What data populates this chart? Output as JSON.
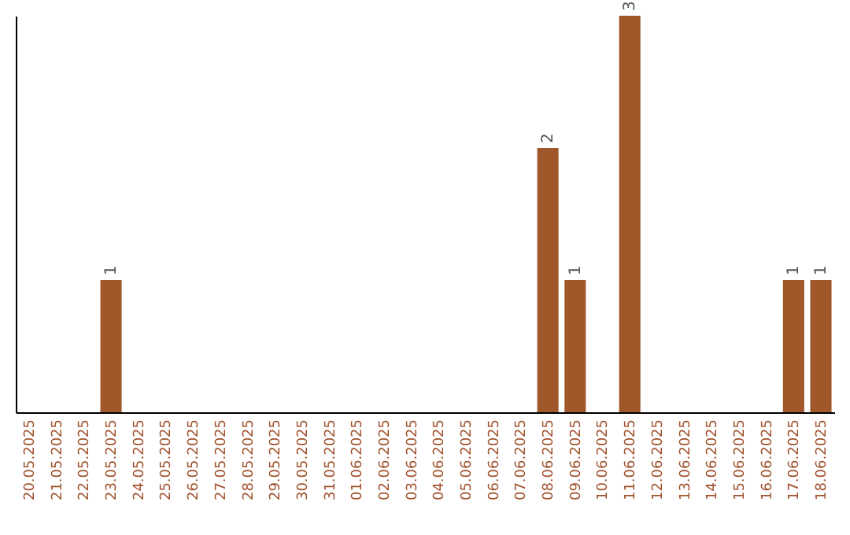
{
  "chart_data": {
    "type": "bar",
    "categories": [
      "20.05.2025",
      "21.05.2025",
      "22.05.2025",
      "23.05.2025",
      "24.05.2025",
      "25.05.2025",
      "26.05.2025",
      "27.05.2025",
      "28.05.2025",
      "29.05.2025",
      "30.05.2025",
      "31.05.2025",
      "01.06.2025",
      "02.06.2025",
      "03.06.2025",
      "04.06.2025",
      "05.06.2025",
      "06.06.2025",
      "07.06.2025",
      "08.06.2025",
      "09.06.2025",
      "10.06.2025",
      "11.06.2025",
      "12.06.2025",
      "13.06.2025",
      "14.06.2025",
      "15.06.2025",
      "16.06.2025",
      "17.06.2025",
      "18.06.2025"
    ],
    "values": [
      0,
      0,
      0,
      1,
      0,
      0,
      0,
      0,
      0,
      0,
      0,
      0,
      0,
      0,
      0,
      0,
      0,
      0,
      0,
      2,
      1,
      0,
      3,
      0,
      0,
      0,
      0,
      0,
      1,
      1
    ],
    "value_labels": [
      null,
      null,
      null,
      "1",
      null,
      null,
      null,
      null,
      null,
      null,
      null,
      null,
      null,
      null,
      null,
      null,
      null,
      null,
      null,
      "2",
      "1",
      null,
      "3",
      null,
      null,
      null,
      null,
      null,
      "1",
      "1"
    ],
    "color": "#a0572a",
    "relative": false,
    "grid": false
  }
}
